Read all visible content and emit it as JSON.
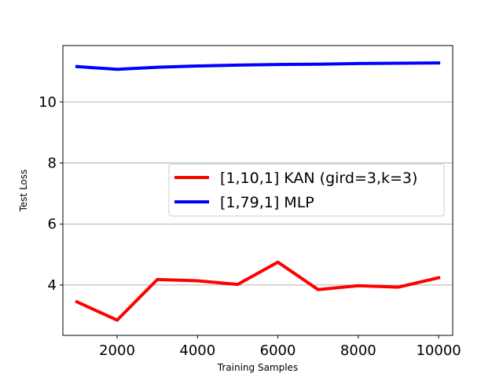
{
  "chart_data": {
    "type": "line",
    "title": "",
    "xlabel": "Training Samples",
    "ylabel": "Test Loss",
    "xlim": [
      650,
      10350
    ],
    "ylim": [
      2.35,
      11.85
    ],
    "xticks": [
      2000,
      4000,
      6000,
      8000,
      10000
    ],
    "yticks": [
      4,
      6,
      8,
      10
    ],
    "grid": "horizontal",
    "legend_position": "center-right",
    "x": [
      1000,
      2000,
      3000,
      4000,
      5000,
      6000,
      7000,
      8000,
      9000,
      10000
    ],
    "series": [
      {
        "name": "[1,10,1] KAN (gird=3,k=3)",
        "color": "#ff0000",
        "values": [
          3.45,
          2.85,
          4.18,
          4.14,
          4.02,
          4.75,
          3.85,
          3.98,
          3.93,
          4.24
        ]
      },
      {
        "name": "[1,79,1] MLP",
        "color": "#0000ff",
        "values": [
          11.16,
          11.07,
          11.14,
          11.18,
          11.21,
          11.23,
          11.24,
          11.26,
          11.27,
          11.28
        ]
      }
    ]
  }
}
